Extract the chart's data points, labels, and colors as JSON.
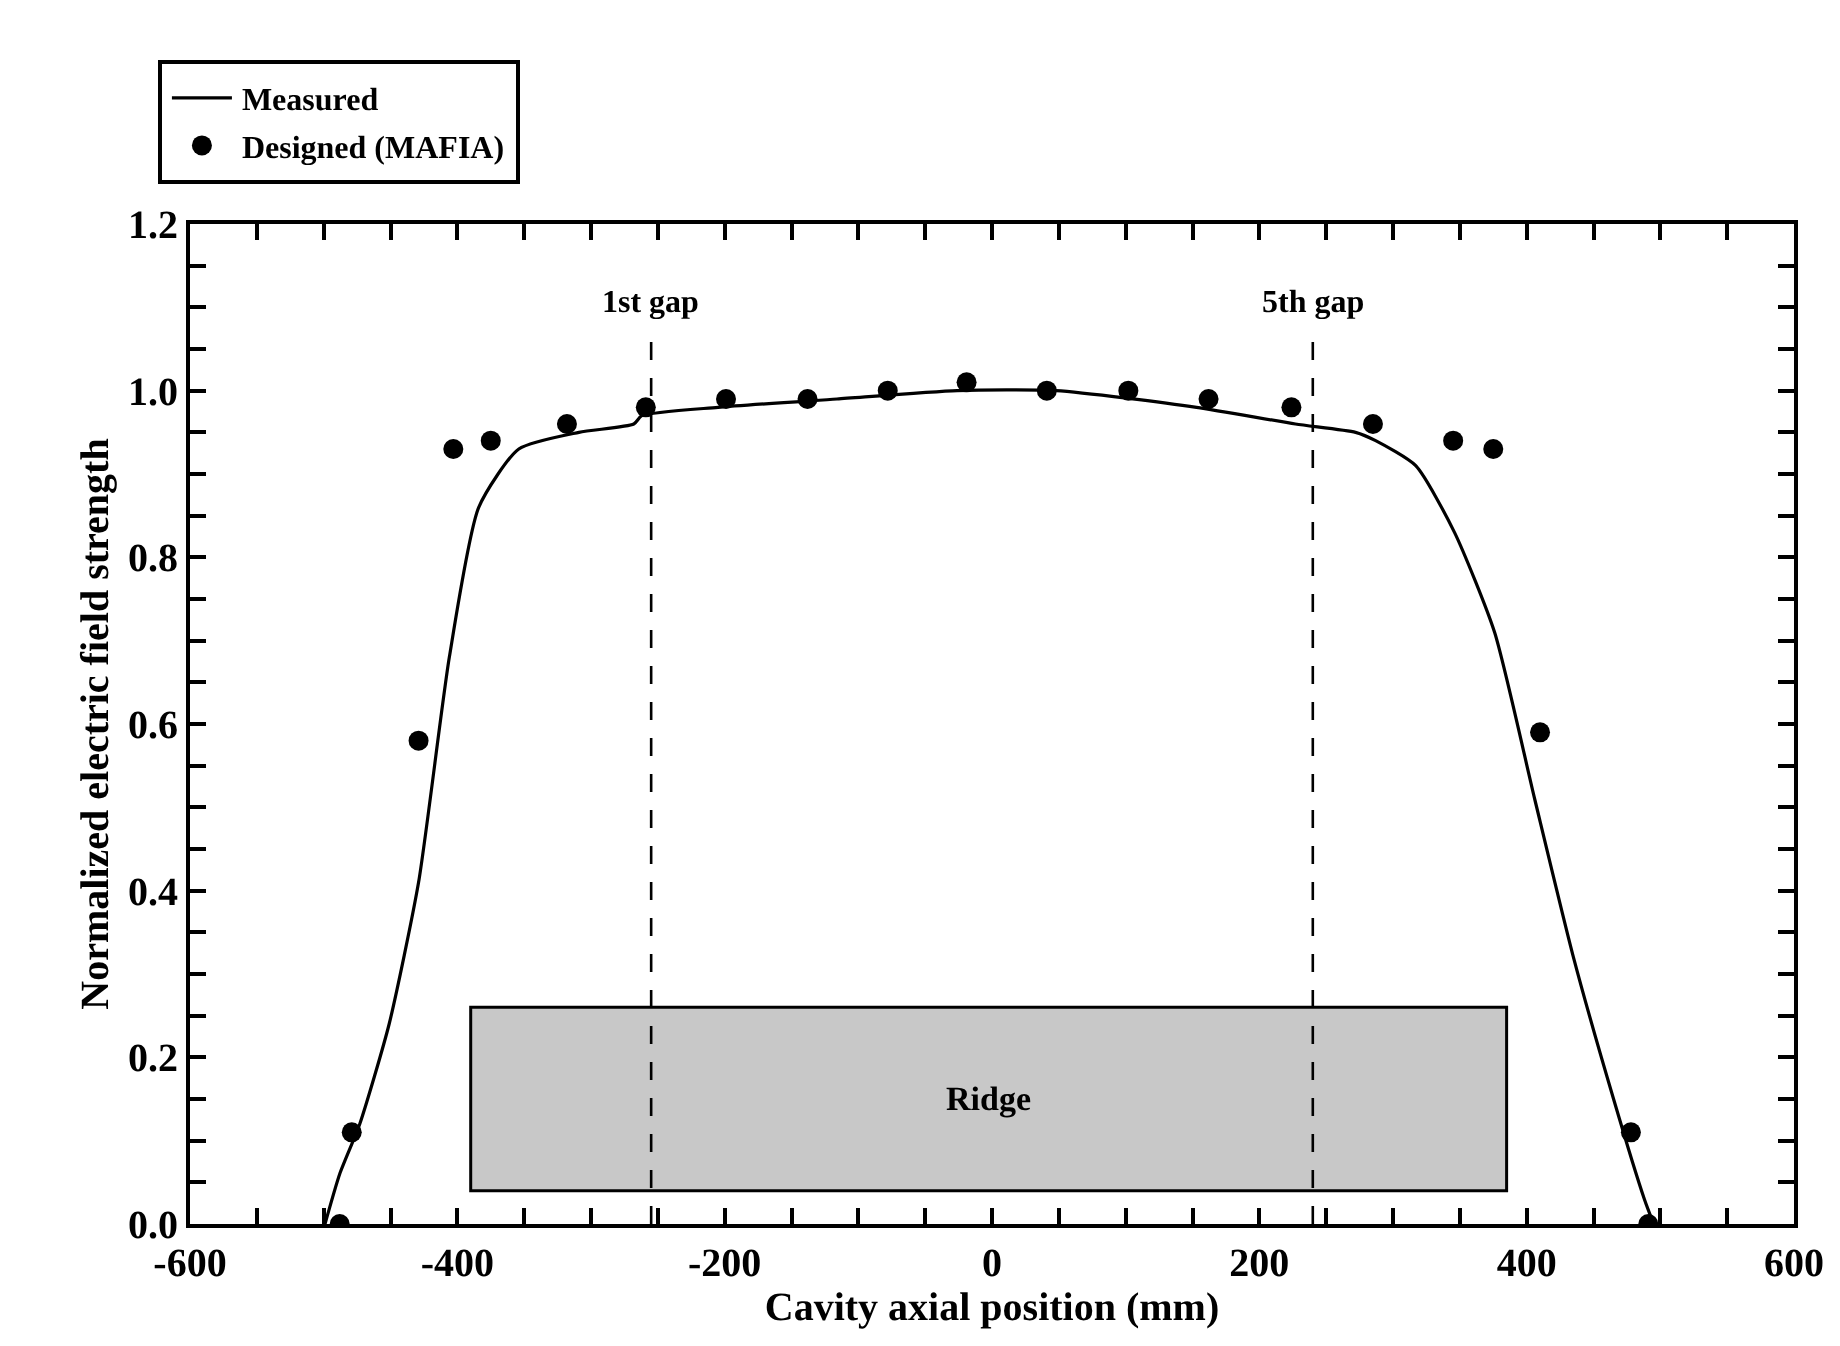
{
  "chart_data": {
    "type": "line",
    "xlabel": "Cavity axial position (mm)",
    "ylabel": "Normalized electric field strength",
    "series": [
      {
        "name": "Measured",
        "color": "#000000",
        "marker": "none",
        "line_style": "solid",
        "x": [
          -499,
          -488,
          -473,
          -451,
          -429,
          -406,
          -384,
          -354,
          -309,
          -268,
          -262,
          -205,
          -116,
          -26,
          48,
          153,
          227,
          272,
          287,
          317,
          346,
          376,
          406,
          435,
          465,
          488,
          495
        ],
        "values": [
          0,
          0.06,
          0.12,
          0.24,
          0.41,
          0.68,
          0.86,
          0.93,
          0.95,
          0.96,
          0.97,
          0.98,
          0.99,
          1.0,
          1.0,
          0.98,
          0.96,
          0.95,
          0.94,
          0.91,
          0.83,
          0.71,
          0.51,
          0.32,
          0.15,
          0.03,
          0
        ]
      },
      {
        "name": "Designed (MAFIA)",
        "type": "scatter",
        "color": "#000000",
        "marker": "circle",
        "x": [
          -488,
          -479,
          -429,
          -403,
          -375,
          -318,
          -259,
          -199,
          -138,
          -78,
          -19,
          41,
          102,
          162,
          224,
          285,
          345,
          375,
          410,
          478,
          491
        ],
        "values": [
          0,
          0.11,
          0.58,
          0.93,
          0.94,
          0.96,
          0.98,
          0.99,
          0.99,
          1.0,
          1.01,
          1.0,
          1.0,
          0.99,
          0.98,
          0.96,
          0.94,
          0.93,
          0.59,
          0.11,
          0
        ]
      }
    ],
    "xlim": [
      -600,
      600
    ],
    "xticks": [
      -600,
      {
        "value": -550,
        "label": null
      },
      {
        "value": -500,
        "label": null
      },
      {
        "value": -450,
        "label": null
      },
      -400,
      {
        "value": -350,
        "label": null
      },
      {
        "value": -300,
        "label": null
      },
      {
        "value": -250,
        "label": null
      },
      -200,
      {
        "value": -150,
        "label": null
      },
      {
        "value": -100,
        "label": null
      },
      {
        "value": -50,
        "label": null
      },
      0,
      {
        "value": 50,
        "label": null
      },
      {
        "value": 100,
        "label": null
      },
      {
        "value": 150,
        "label": null
      },
      200,
      {
        "value": 250,
        "label": null
      },
      {
        "value": 300,
        "label": null
      },
      {
        "value": 350,
        "label": null
      },
      400,
      {
        "value": 450,
        "label": null
      },
      {
        "value": 500,
        "label": null
      },
      {
        "value": 550,
        "label": null
      },
      600
    ],
    "ylim": [
      0,
      1.2
    ],
    "yticks": [
      {
        "value": 0,
        "label": "0.0"
      },
      {
        "value": 0.05,
        "label": null
      },
      {
        "value": 0.1,
        "label": null
      },
      {
        "value": 0.15,
        "label": null
      },
      {
        "value": 0.2,
        "label": "0.2"
      },
      {
        "value": 0.25,
        "label": null
      },
      {
        "value": 0.3,
        "label": null
      },
      {
        "value": 0.35,
        "label": null
      },
      {
        "value": 0.4,
        "label": "0.4"
      },
      {
        "value": 0.45,
        "label": null
      },
      {
        "value": 0.5,
        "label": null
      },
      {
        "value": 0.55,
        "label": null
      },
      {
        "value": 0.6,
        "label": "0.6"
      },
      {
        "value": 0.65,
        "label": null
      },
      {
        "value": 0.7,
        "label": null
      },
      {
        "value": 0.75,
        "label": null
      },
      {
        "value": 0.8,
        "label": "0.8"
      },
      {
        "value": 0.85,
        "label": null
      },
      {
        "value": 0.9,
        "label": null
      },
      {
        "value": 0.95,
        "label": null
      },
      {
        "value": 1.0,
        "label": "1.0"
      },
      {
        "value": 1.05,
        "label": null
      },
      {
        "value": 1.1,
        "label": null
      },
      {
        "value": 1.15,
        "label": null
      },
      {
        "value": 1.2,
        "label": "1.2"
      }
    ],
    "ref_lines": [
      {
        "axis": "x",
        "value": -255,
        "label": "1st gap",
        "line_style": "dashed",
        "color": "#000000"
      },
      {
        "axis": "x",
        "value": 240,
        "label": "5th gap",
        "line_style": "dashed",
        "color": "#000000"
      }
    ],
    "bands": [
      {
        "axis": "x",
        "from": -390,
        "to": 385,
        "label": "Ridge",
        "color": "#c8c8c8"
      }
    ],
    "grid": false,
    "legend": "top left"
  }
}
